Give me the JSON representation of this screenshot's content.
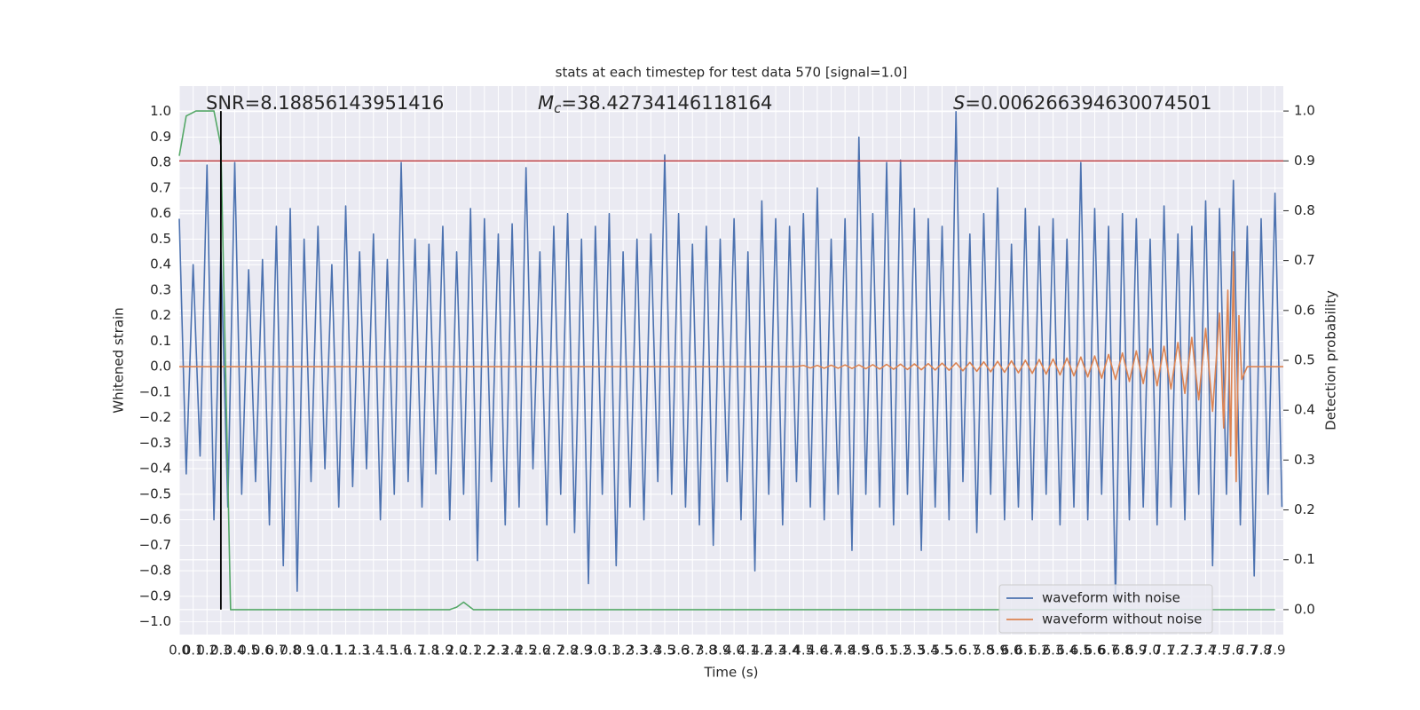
{
  "chart_data": {
    "type": "line",
    "title": "stats at each timestep for test data 570 [signal=1.0]",
    "xlabel": "Time (s)",
    "ylabel": "Whitened strain",
    "y2label": "Detection probability",
    "annotations": [
      {
        "text": "SNR=8.18856143951416"
      },
      {
        "symbol": "M",
        "subscript": "c",
        "text": "=38.42734146118164"
      },
      {
        "symbol": "S",
        "text": "=0.006266394630074501"
      }
    ],
    "xlim": [
      0,
      7.96
    ],
    "ylim": [
      -1.05,
      1.1
    ],
    "y2lim": [
      -0.05,
      1.05
    ],
    "grid": true,
    "legend": "lower right",
    "xticks": [
      {
        "value": 0,
        "label": "0.0"
      },
      0.1,
      0.2,
      0.3,
      0.4,
      0.5,
      0.6,
      0.7,
      0.8,
      0.9,
      {
        "value": 1,
        "label": "1.0"
      },
      1.1,
      1.2,
      1.3,
      1.4,
      1.5,
      1.6,
      1.7,
      1.8,
      1.9,
      {
        "value": 2,
        "label": "2.0"
      },
      2.1,
      2.2,
      2.3,
      2.4,
      2.5,
      2.6,
      2.7,
      2.8,
      2.9,
      {
        "value": 3,
        "label": "3.0"
      },
      3.1,
      3.2,
      3.3,
      3.4,
      3.5,
      3.6,
      3.7,
      3.8,
      3.9,
      {
        "value": 4,
        "label": "4.0"
      },
      4.1,
      4.2,
      4.3,
      4.4,
      4.5,
      4.6,
      4.7,
      4.8,
      4.9,
      {
        "value": 5,
        "label": "5.0"
      },
      5.1,
      5.2,
      5.3,
      5.4,
      5.5,
      5.6,
      5.7,
      5.8,
      5.9,
      {
        "value": 6,
        "label": "6.0"
      },
      6.1,
      6.2,
      6.3,
      6.4,
      6.5,
      6.6,
      6.7,
      6.8,
      6.9,
      {
        "value": 7,
        "label": "7.0"
      },
      7.1,
      7.2,
      7.3,
      7.4,
      7.5,
      7.6,
      7.7,
      7.8,
      7.9
    ],
    "yticks": [
      {
        "value": -1,
        "label": "−1.0"
      },
      {
        "value": -0.9,
        "label": "−0.9"
      },
      {
        "value": -0.8,
        "label": "−0.8"
      },
      {
        "value": -0.7,
        "label": "−0.7"
      },
      {
        "value": -0.6,
        "label": "−0.6"
      },
      {
        "value": -0.5,
        "label": "−0.5"
      },
      {
        "value": -0.4,
        "label": "−0.4"
      },
      {
        "value": -0.3,
        "label": "−0.3"
      },
      {
        "value": -0.2,
        "label": "−0.2"
      },
      {
        "value": -0.1,
        "label": "−0.1"
      },
      {
        "value": 0,
        "label": "0.0"
      },
      0.1,
      0.2,
      0.3,
      0.4,
      0.5,
      0.6,
      0.7,
      0.8,
      0.9,
      {
        "value": 1,
        "label": "1.0"
      }
    ],
    "y2ticks": [
      {
        "value": 0,
        "label": "0.0"
      },
      0.1,
      0.2,
      0.3,
      0.4,
      0.5,
      0.6,
      0.7,
      0.8,
      0.9,
      {
        "value": 1,
        "label": "1.0"
      }
    ],
    "series": [
      {
        "name": "waveform with noise",
        "color": "#4c72b0",
        "x": [
          0,
          0.05,
          0.1,
          0.15,
          0.2,
          0.25,
          0.3,
          0.35,
          0.4,
          0.45,
          0.5,
          0.55,
          0.6,
          0.65,
          0.7,
          0.75,
          0.8,
          0.85,
          0.9,
          0.95,
          1,
          1.05,
          1.1,
          1.15,
          1.2,
          1.25,
          1.3,
          1.35,
          1.4,
          1.45,
          1.5,
          1.55,
          1.6,
          1.65,
          1.7,
          1.75,
          1.8,
          1.85,
          1.9,
          1.95,
          2,
          2.05,
          2.1,
          2.15,
          2.2,
          2.25,
          2.3,
          2.35,
          2.4,
          2.45,
          2.5,
          2.55,
          2.6,
          2.65,
          2.7,
          2.75,
          2.8,
          2.85,
          2.9,
          2.95,
          3,
          3.05,
          3.1,
          3.15,
          3.2,
          3.25,
          3.3,
          3.35,
          3.4,
          3.45,
          3.5,
          3.55,
          3.6,
          3.65,
          3.7,
          3.75,
          3.8,
          3.85,
          3.9,
          3.95,
          4,
          4.05,
          4.1,
          4.15,
          4.2,
          4.25,
          4.3,
          4.35,
          4.4,
          4.45,
          4.5,
          4.55,
          4.6,
          4.65,
          4.7,
          4.75,
          4.8,
          4.85,
          4.9,
          4.95,
          5,
          5.05,
          5.1,
          5.15,
          5.2,
          5.25,
          5.3,
          5.35,
          5.4,
          5.45,
          5.5,
          5.55,
          5.6,
          5.65,
          5.7,
          5.75,
          5.8,
          5.85,
          5.9,
          5.95,
          6,
          6.05,
          6.1,
          6.15,
          6.2,
          6.25,
          6.3,
          6.35,
          6.4,
          6.45,
          6.5,
          6.55,
          6.6,
          6.65,
          6.7,
          6.75,
          6.8,
          6.85,
          6.9,
          6.95,
          7,
          7.05,
          7.1,
          7.15,
          7.2,
          7.25,
          7.3,
          7.35,
          7.4,
          7.45,
          7.5,
          7.55,
          7.6,
          7.65,
          7.7,
          7.75,
          7.8,
          7.85,
          7.9,
          7.95
        ],
        "values": [
          0.58,
          -0.42,
          0.4,
          -0.35,
          0.79,
          -0.6,
          0.45,
          -0.55,
          0.8,
          -0.5,
          0.38,
          -0.45,
          0.42,
          -0.62,
          0.55,
          -0.78,
          0.62,
          -0.88,
          0.5,
          -0.45,
          0.55,
          -0.4,
          0.4,
          -0.55,
          0.63,
          -0.47,
          0.45,
          -0.4,
          0.52,
          -0.6,
          0.42,
          -0.5,
          0.8,
          -0.45,
          0.5,
          -0.55,
          0.48,
          -0.42,
          0.55,
          -0.6,
          0.45,
          -0.5,
          0.62,
          -0.76,
          0.58,
          -0.45,
          0.52,
          -0.62,
          0.56,
          -0.55,
          0.78,
          -0.4,
          0.45,
          -0.62,
          0.55,
          -0.5,
          0.6,
          -0.65,
          0.5,
          -0.85,
          0.55,
          -0.5,
          0.6,
          -0.78,
          0.45,
          -0.55,
          0.5,
          -0.6,
          0.52,
          -0.45,
          0.83,
          -0.5,
          0.6,
          -0.55,
          0.48,
          -0.62,
          0.55,
          -0.7,
          0.5,
          -0.45,
          0.58,
          -0.6,
          0.45,
          -0.8,
          0.65,
          -0.5,
          0.58,
          -0.62,
          0.55,
          -0.45,
          0.6,
          -0.55,
          0.7,
          -0.6,
          0.5,
          -0.5,
          0.58,
          -0.72,
          0.9,
          -0.5,
          0.6,
          -0.55,
          0.8,
          -0.62,
          0.81,
          -0.5,
          0.62,
          -0.72,
          0.58,
          -0.55,
          0.55,
          -0.6,
          1.0,
          -0.45,
          0.52,
          -0.65,
          0.6,
          -0.5,
          0.7,
          -0.6,
          0.48,
          -0.55,
          0.62,
          -0.6,
          0.55,
          -0.5,
          0.58,
          -0.62,
          0.5,
          -0.55,
          0.8,
          -0.6,
          0.62,
          -0.5,
          0.55,
          -0.92,
          0.6,
          -0.6,
          0.58,
          -0.55,
          0.5,
          -0.62,
          0.63,
          -0.55,
          0.52,
          -0.6,
          0.55,
          -0.5,
          0.65,
          -0.78,
          0.62,
          -0.5,
          0.73,
          -0.62,
          0.55,
          -0.82,
          0.58,
          -0.5,
          0.68,
          -0.55
        ]
      },
      {
        "name": "waveform without noise",
        "color": "#dd8452",
        "x": [
          0,
          4.45,
          4.5,
          4.55,
          4.6,
          4.65,
          4.7,
          4.75,
          4.8,
          4.85,
          4.9,
          4.95,
          5,
          5.05,
          5.1,
          5.15,
          5.2,
          5.25,
          5.3,
          5.35,
          5.4,
          5.45,
          5.5,
          5.55,
          5.6,
          5.65,
          5.7,
          5.75,
          5.8,
          5.85,
          5.9,
          5.95,
          6,
          6.05,
          6.1,
          6.15,
          6.2,
          6.25,
          6.3,
          6.35,
          6.4,
          6.45,
          6.5,
          6.55,
          6.6,
          6.65,
          6.7,
          6.75,
          6.8,
          6.85,
          6.9,
          6.95,
          7,
          7.05,
          7.1,
          7.15,
          7.2,
          7.25,
          7.3,
          7.35,
          7.4,
          7.45,
          7.5,
          7.53,
          7.56,
          7.58,
          7.6,
          7.62,
          7.64,
          7.66,
          7.7,
          7.96
        ],
        "values": [
          0,
          0,
          0.005,
          -0.005,
          0.005,
          -0.006,
          0.006,
          -0.006,
          0.007,
          -0.007,
          0.007,
          -0.008,
          0.008,
          -0.009,
          0.009,
          -0.01,
          0.01,
          -0.011,
          0.011,
          -0.012,
          0.012,
          -0.013,
          0.014,
          -0.014,
          0.015,
          -0.016,
          0.017,
          -0.018,
          0.019,
          -0.02,
          0.021,
          -0.022,
          0.023,
          -0.024,
          0.025,
          -0.026,
          0.028,
          -0.029,
          0.03,
          -0.032,
          0.034,
          -0.036,
          0.038,
          -0.04,
          0.042,
          -0.045,
          0.048,
          -0.05,
          0.054,
          -0.058,
          0.062,
          -0.066,
          0.07,
          -0.075,
          0.08,
          -0.087,
          0.095,
          -0.105,
          0.115,
          -0.13,
          0.15,
          -0.175,
          0.21,
          -0.24,
          0.3,
          -0.35,
          0.45,
          -0.45,
          0.2,
          -0.05,
          0,
          0
        ]
      },
      {
        "color": "#55a868",
        "axis": "y2",
        "x": [
          0,
          0.05,
          0.12,
          0.25,
          0.3,
          0.37,
          1.95,
          2.0,
          2.05,
          2.12,
          7.9
        ],
        "values": [
          0.91,
          0.99,
          1.0,
          1.0,
          0.93,
          0,
          0,
          0.005,
          0.015,
          0,
          0
        ]
      }
    ],
    "hline": {
      "value": 0.9,
      "axis": "y2",
      "color": "#c44e52"
    },
    "vline": {
      "x": 0.3,
      "ymin": 0,
      "ymax": 1,
      "axis": "y2",
      "color": "#000000"
    }
  }
}
